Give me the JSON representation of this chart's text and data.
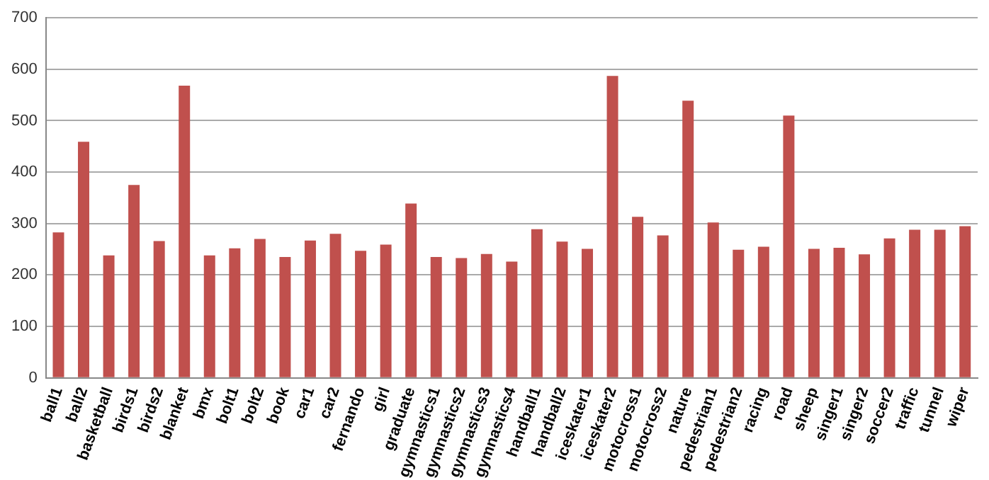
{
  "chart_data": {
    "type": "bar",
    "categories": [
      "ball1",
      "ball2",
      "basketball",
      "birds1",
      "birds2",
      "blanket",
      "bmx",
      "bolt1",
      "bolt2",
      "book",
      "car1",
      "car2",
      "fernando",
      "girl",
      "graduate",
      "gymnastics1",
      "gymnastics2",
      "gymnastics3",
      "gymnastics4",
      "handball1",
      "handball2",
      "iceskater1",
      "iceskater2",
      "motocross1",
      "motocross2",
      "nature",
      "pedestrian1",
      "pedestrian2",
      "racing",
      "road",
      "sheep",
      "singer1",
      "singer2",
      "soccer2",
      "traffic",
      "tunnel",
      "wiper"
    ],
    "values": [
      283,
      459,
      238,
      375,
      266,
      568,
      238,
      252,
      270,
      235,
      267,
      280,
      247,
      259,
      339,
      235,
      233,
      241,
      226,
      289,
      265,
      251,
      587,
      313,
      277,
      539,
      302,
      249,
      255,
      510,
      251,
      253,
      240,
      271,
      288,
      288,
      295
    ],
    "color": "#c0504d",
    "ylim": [
      0,
      700
    ],
    "yticks": [
      0,
      100,
      200,
      300,
      400,
      500,
      600,
      700
    ],
    "grid": "y"
  }
}
